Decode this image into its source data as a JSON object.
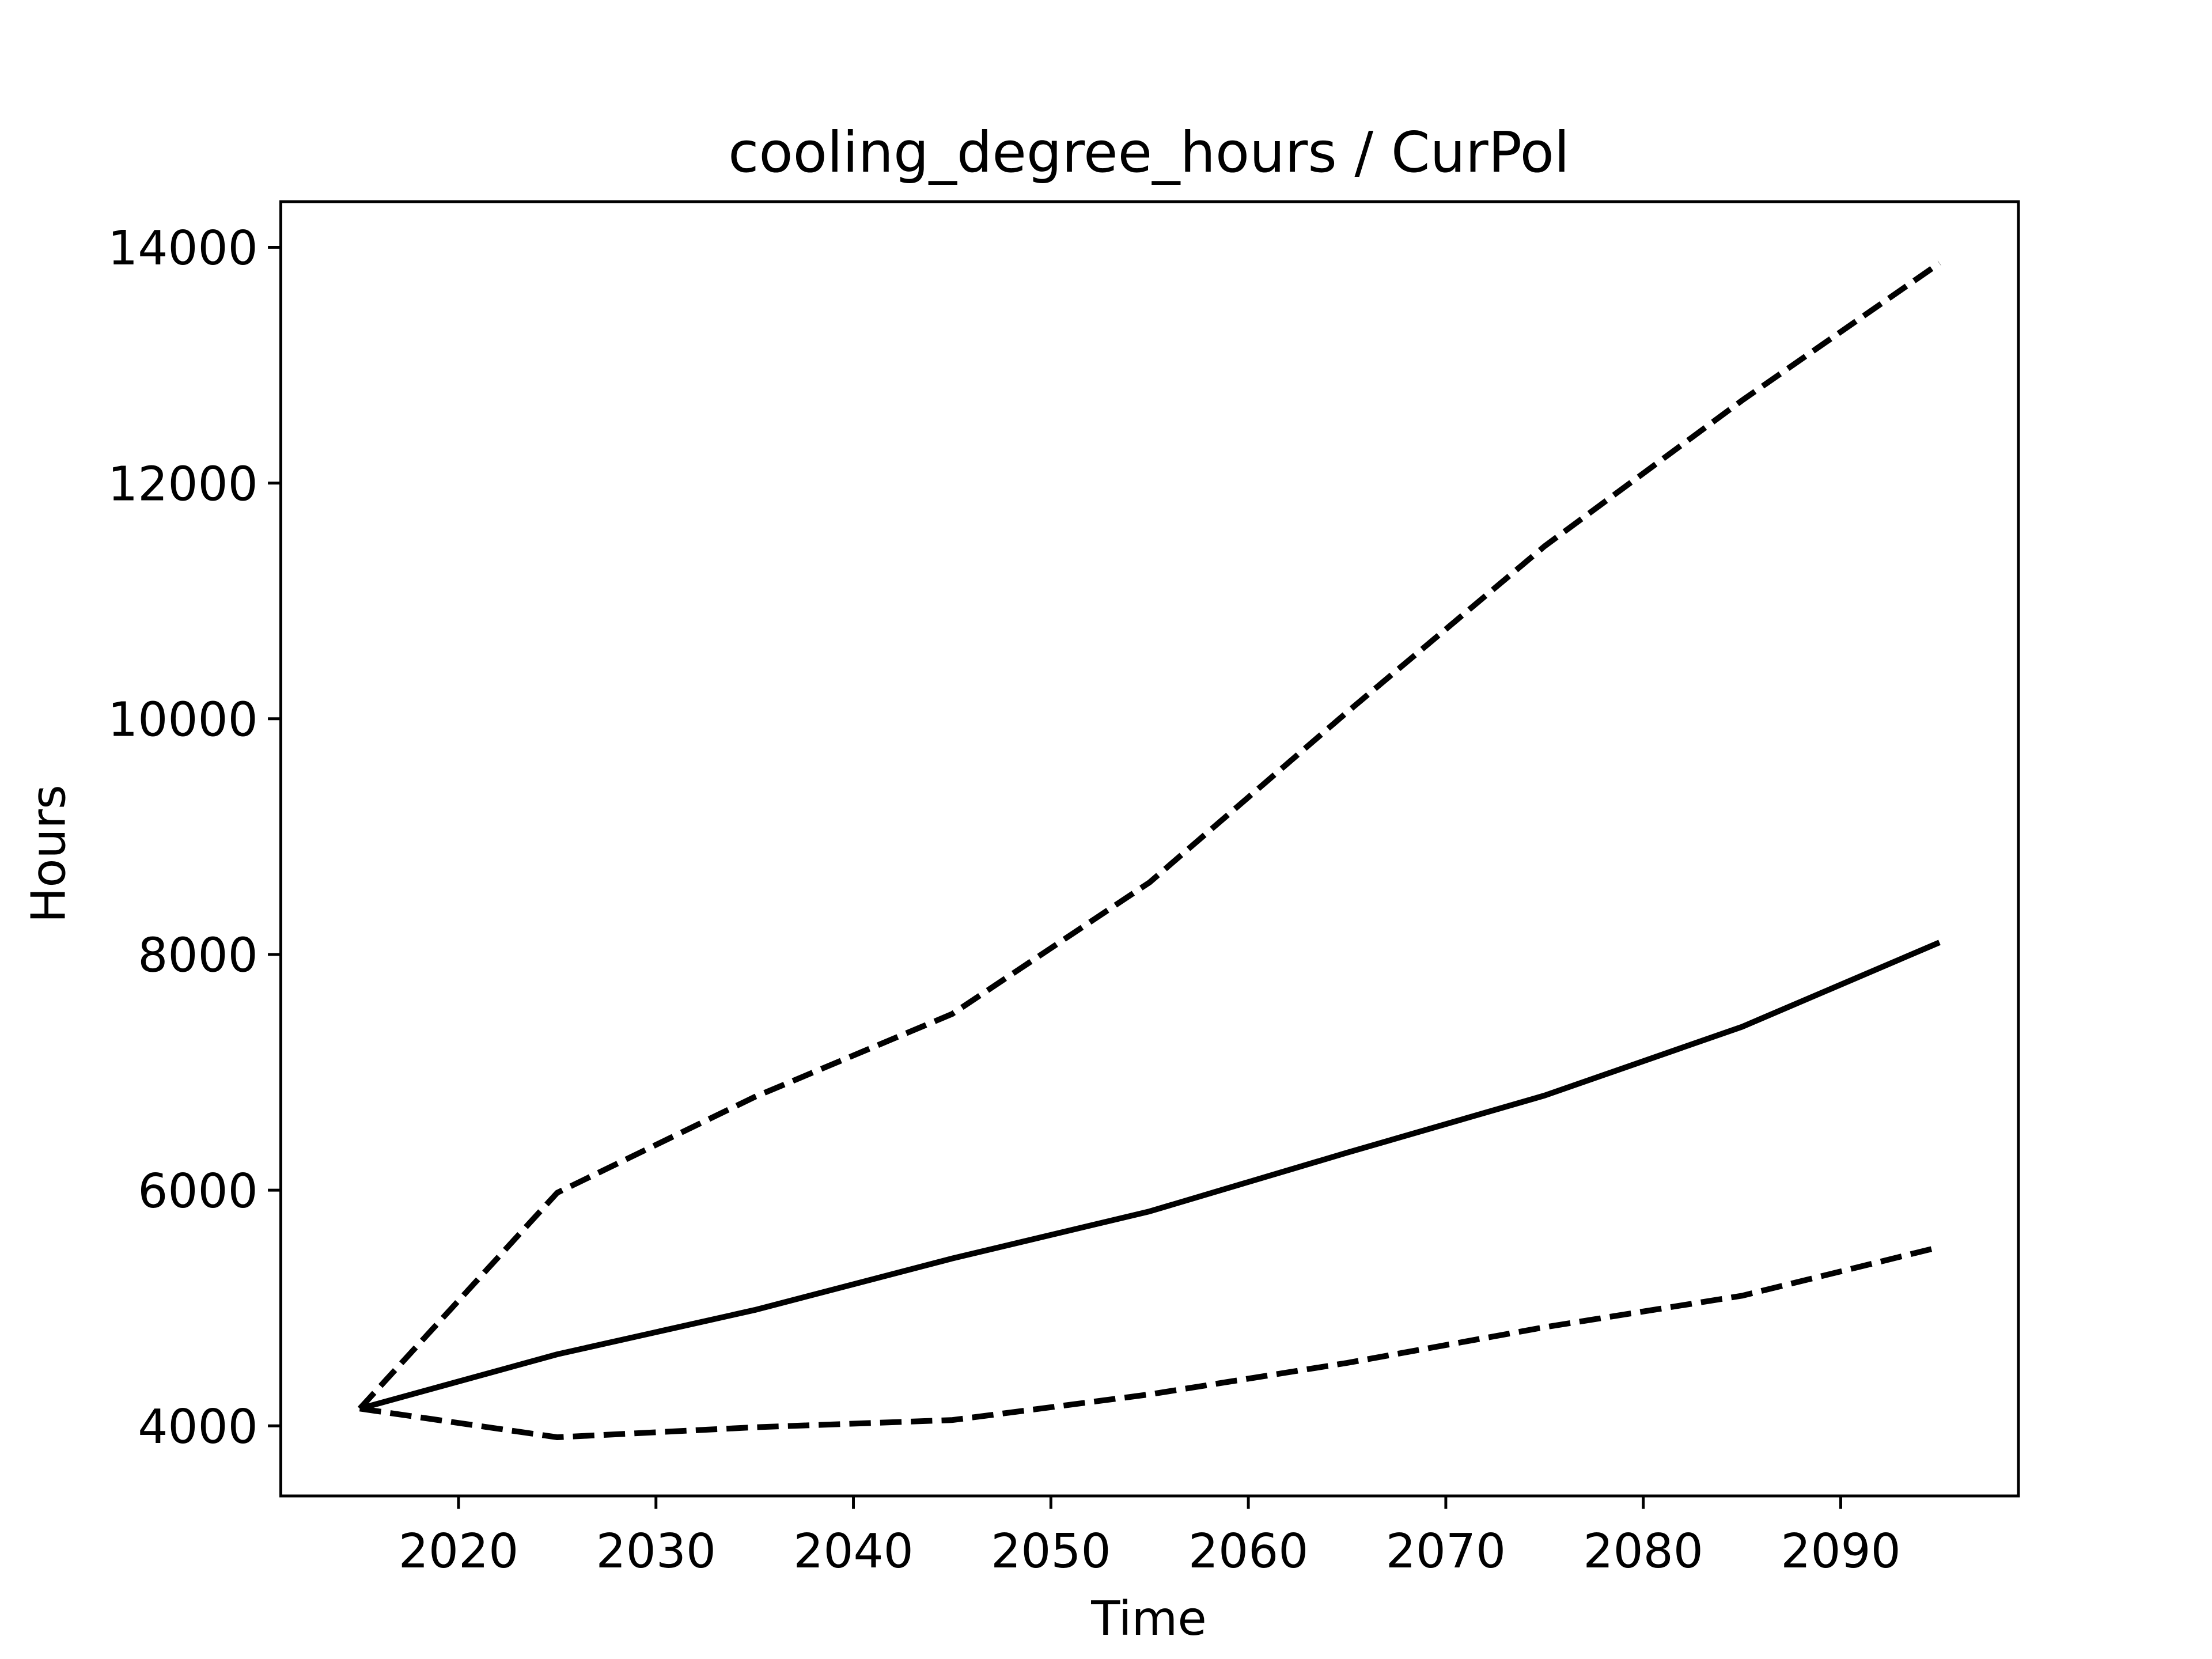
{
  "chart_data": {
    "type": "line",
    "title": "cooling_degree_hours / CurPol",
    "xlabel": "Time",
    "ylabel": "Hours",
    "x": [
      2015,
      2025,
      2035,
      2045,
      2055,
      2065,
      2075,
      2085,
      2095
    ],
    "series": [
      {
        "color": "#000000",
        "linestyle": "solid",
        "values": [
          4146,
          4607,
          4983,
          5420,
          5820,
          6318,
          6803,
          7386,
          8102
        ]
      },
      {
        "color": "#000000",
        "linestyle": "dashed",
        "values": [
          4146,
          5978,
          6791,
          7495,
          8612,
          10056,
          11464,
          12701,
          13866
        ]
      },
      {
        "color": "#000000",
        "linestyle": "dashed",
        "values": [
          4146,
          3903,
          3988,
          4049,
          4267,
          4534,
          4837,
          5104,
          5517
        ]
      }
    ],
    "xlim": [
      2011,
      2099
    ],
    "xticks": [
      2020,
      2030,
      2040,
      2050,
      2060,
      2070,
      2080,
      2090
    ],
    "ylim": [
      3405,
      14388
    ],
    "yticks": [
      4000,
      6000,
      8000,
      10000,
      12000,
      14000
    ],
    "grid": false
  }
}
